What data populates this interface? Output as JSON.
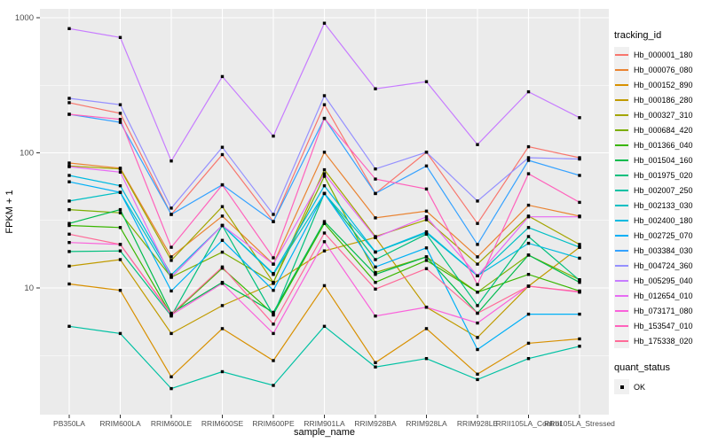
{
  "figure": {
    "panel_bg": "#EBEBEB",
    "grid_color": "#FFFFFF",
    "axis_text_color": "#4D4D4D",
    "axis_title_color": "#000000",
    "tick_color": "#333333",
    "point_color": "#000000",
    "legend_key_bg": "#F0F0F0"
  },
  "legend": {
    "tracking_title": "tracking_id",
    "quant_title": "quant_status",
    "quant_items": [
      {
        "label": "OK"
      }
    ]
  },
  "chart_data": {
    "type": "line",
    "title": "",
    "xlabel": "sample_name",
    "ylabel": "FPKM + 1",
    "y_scale": "log10",
    "y_ticks": [
      10,
      100,
      1000
    ],
    "y_tick_labels": [
      "10",
      "100",
      "1000"
    ],
    "y_minor": [
      3.162,
      31.62,
      316.2
    ],
    "ylim": [
      1.15,
      1170
    ],
    "grid": true,
    "legend_position": "right",
    "marker": "black-point",
    "categories": [
      "PB350LA",
      "RRIM600LA",
      "RRIM600LE",
      "RRIM600SE",
      "RRIM600PE",
      "RRIM901LA",
      "RRIM928BA",
      "RRIM928LA",
      "RRIM928LE",
      "RRII105LA_Control",
      "RRII105LA_Stressed"
    ],
    "series": [
      {
        "name": "Hb_000001_180",
        "color": "#F8766D",
        "values": [
          235,
          196,
          35,
          97,
          31,
          227,
          50,
          101,
          30,
          111,
          92
        ]
      },
      {
        "name": "Hb_000076_080",
        "color": "#EA8331",
        "values": [
          84,
          77,
          17,
          34,
          15,
          101,
          33,
          37,
          17,
          41,
          34
        ]
      },
      {
        "name": "Hb_000152_890",
        "color": "#D89000",
        "values": [
          10.7,
          9.6,
          2.2,
          5,
          2.9,
          10.4,
          2.8,
          5,
          2.3,
          3.9,
          4.2
        ]
      },
      {
        "name": "Hb_000186_280",
        "color": "#C09B00",
        "values": [
          14.5,
          16.2,
          4.6,
          7.4,
          10.8,
          18.8,
          23.6,
          7.2,
          4.3,
          10.3,
          20
        ]
      },
      {
        "name": "Hb_000327_310",
        "color": "#A3A500",
        "values": [
          80,
          76,
          16,
          40,
          11,
          75,
          24,
          32,
          15,
          34,
          21
        ]
      },
      {
        "name": "Hb_000684_420",
        "color": "#7CAE00",
        "values": [
          38,
          36,
          12,
          18.4,
          11,
          67,
          13,
          17,
          9.3,
          17.5,
          11.5
        ]
      },
      {
        "name": "Hb_001366_040",
        "color": "#39B600",
        "values": [
          29,
          28,
          6.3,
          14,
          6.4,
          30,
          11,
          16,
          9.3,
          12.6,
          9.5
        ]
      },
      {
        "name": "Hb_001504_160",
        "color": "#00BB4E",
        "values": [
          30,
          38,
          6.5,
          11,
          6.6,
          31,
          12.6,
          17,
          6.5,
          17.5,
          11
        ]
      },
      {
        "name": "Hb_001975_020",
        "color": "#00BF7D",
        "values": [
          18.6,
          18.8,
          6.2,
          29,
          6.3,
          50,
          16.2,
          25,
          7.4,
          24,
          11.4
        ]
      },
      {
        "name": "Hb_002007_250",
        "color": "#00C1A3",
        "values": [
          5.2,
          4.6,
          1.8,
          2.4,
          1.9,
          5.2,
          2.6,
          3,
          2.1,
          3,
          3.7
        ]
      },
      {
        "name": "Hb_002133_030",
        "color": "#00BFC4",
        "values": [
          44,
          51,
          12,
          29,
          12.6,
          50,
          18.4,
          25.5,
          12.3,
          28,
          20
        ]
      },
      {
        "name": "Hb_002400_180",
        "color": "#00BAE0",
        "values": [
          68,
          57,
          12.5,
          29,
          12.8,
          57,
          18.5,
          26,
          12.3,
          21.4,
          16.6
        ]
      },
      {
        "name": "Hb_002725_070",
        "color": "#00B0F6",
        "values": [
          61,
          51,
          9.5,
          22.5,
          9.6,
          50,
          14.3,
          19.8,
          3.5,
          6.4,
          6.4
        ]
      },
      {
        "name": "Hb_003384_030",
        "color": "#35A2FF",
        "values": [
          193,
          168,
          35,
          58,
          31,
          180,
          50,
          80,
          21,
          88,
          68
        ]
      },
      {
        "name": "Hb_004724_360",
        "color": "#9590FF",
        "values": [
          253,
          227,
          39,
          110,
          35,
          265,
          76,
          101,
          44,
          92,
          90
        ]
      },
      {
        "name": "Hb_005295_040",
        "color": "#C77CFF",
        "values": [
          830,
          714,
          87,
          367,
          133,
          910,
          298,
          336,
          115,
          283,
          182
        ]
      },
      {
        "name": "Hb_012654_010",
        "color": "#E76BF3",
        "values": [
          79,
          72,
          12,
          29,
          15,
          70,
          23.6,
          33.6,
          12.3,
          33.6,
          33.6
        ]
      },
      {
        "name": "Hb_073171_080",
        "color": "#FA62DB",
        "values": [
          21.7,
          21,
          6.3,
          10.8,
          4.6,
          22,
          6.2,
          7.2,
          5.5,
          10.3,
          9.3
        ]
      },
      {
        "name": "Hb_153547_010",
        "color": "#FF62BC",
        "values": [
          193,
          177,
          20,
          58,
          16.7,
          180,
          64,
          54,
          10.6,
          70,
          43
        ]
      },
      {
        "name": "Hb_175338_020",
        "color": "#FF6A98",
        "values": [
          25,
          21,
          6.4,
          14.3,
          5.4,
          25.5,
          9.8,
          13.9,
          6.5,
          10.3,
          9.4
        ]
      }
    ]
  }
}
